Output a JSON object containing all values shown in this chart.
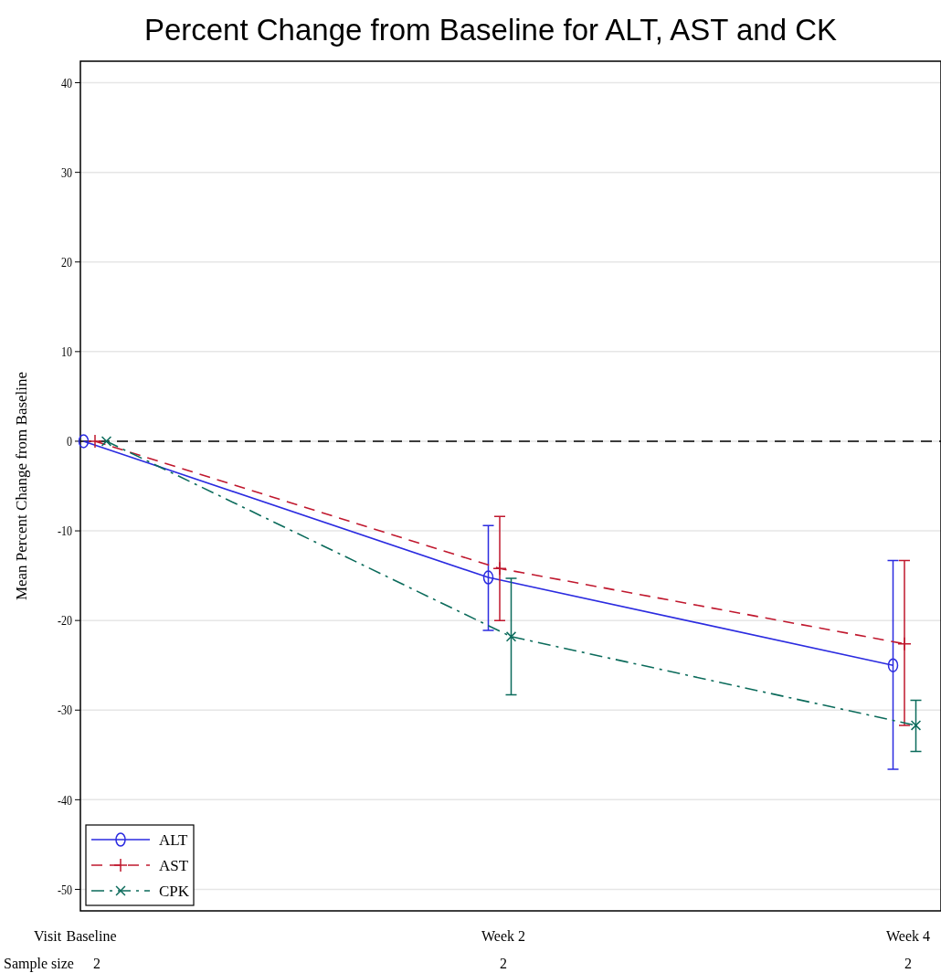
{
  "chart_data": {
    "type": "line",
    "title": "Percent Change from Baseline for ALT, AST and CK",
    "xlabel": "Visit",
    "ylabel": "Mean Percent Change from Baseline",
    "categories": [
      "Baseline",
      "Week 2",
      "Week 4"
    ],
    "series": [
      {
        "name": "ALT",
        "color": "#2b2be0",
        "values": [
          0,
          -15.2,
          -25.0
        ],
        "errors": [
          null,
          [
            -21.1,
            -9.4
          ],
          [
            -36.6,
            -13.3
          ]
        ],
        "marker": "circle",
        "line_style": "solid"
      },
      {
        "name": "AST",
        "color": "#c0182e",
        "values": [
          0,
          -14.2,
          -22.6
        ],
        "errors": [
          null,
          [
            -20.0,
            -8.4
          ],
          [
            -31.7,
            -13.3
          ]
        ],
        "marker": "cross",
        "line_style": "dashed"
      },
      {
        "name": "CPK",
        "color": "#0b6b5b",
        "values": [
          0,
          -21.8,
          -31.7
        ],
        "errors": [
          null,
          [
            -28.3,
            -15.3
          ],
          [
            -34.6,
            -28.9
          ]
        ],
        "marker": "cross",
        "line_style": "dotted"
      }
    ],
    "ylim": [
      -52.4,
      42.4
    ],
    "yticks": [
      -50,
      -40,
      -30,
      -20,
      -10,
      0,
      10,
      20,
      30,
      40
    ],
    "grid": "y",
    "legend": "bottom left",
    "ref_lines": [
      {
        "axis": "y",
        "value": 0,
        "color": "#000000",
        "line_style": "dashed"
      }
    ],
    "annotations": [
      "Sample size",
      "2",
      "2",
      "2"
    ]
  }
}
